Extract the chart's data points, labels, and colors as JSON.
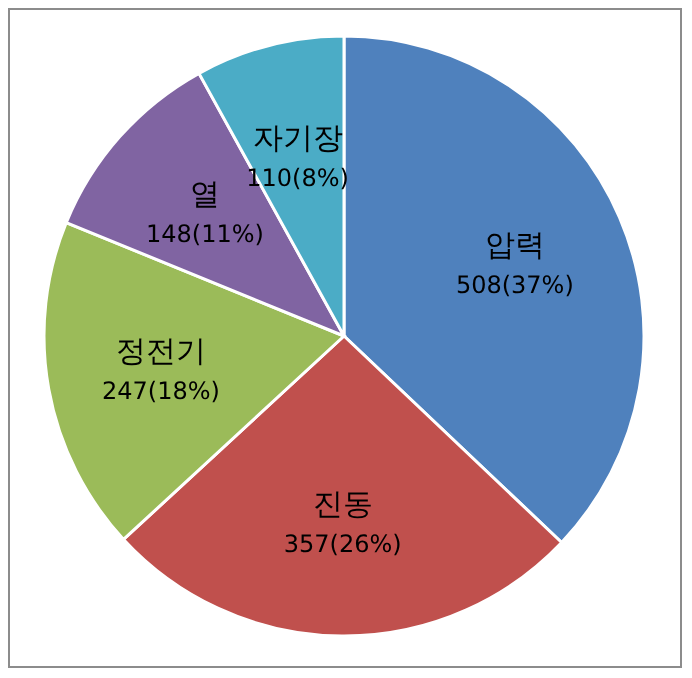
{
  "chart_data": {
    "type": "pie",
    "categories": [
      "압력",
      "진동",
      "정전기",
      "열",
      "자기장"
    ],
    "values": [
      508,
      357,
      247,
      148,
      110
    ],
    "value_labels": [
      "508(37%)",
      "357(26%)",
      "247(18%)",
      "148(11%)",
      "110(8%)"
    ],
    "colors": [
      "#4f81bd",
      "#c0504d",
      "#9bbb59",
      "#8064a2",
      "#4bacc6"
    ]
  }
}
